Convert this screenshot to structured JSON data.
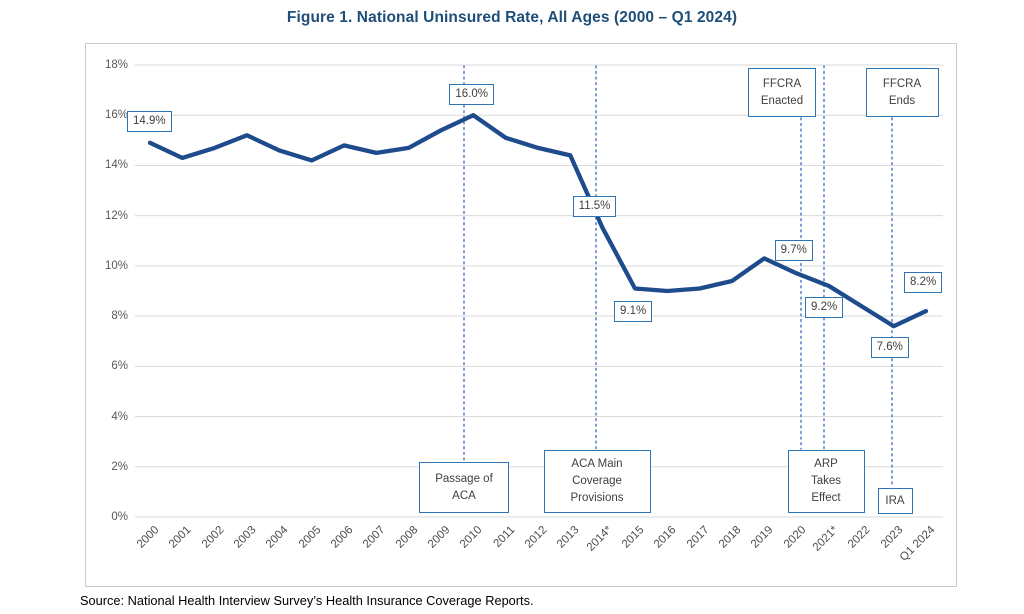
{
  "figure_title": "Figure 1. National Uninsured Rate, All Ages (2000 – Q1 2024)",
  "source_note": "Source: National Health Interview Survey’s Health Insurance Coverage Reports.",
  "chart_data": {
    "type": "line",
    "title": "National Uninsured Rate, All Ages (2000 – Q1 2024)",
    "categories": [
      "2000",
      "2001",
      "2002",
      "2003",
      "2004",
      "2005",
      "2006",
      "2007",
      "2008",
      "2009",
      "2010",
      "2011",
      "2012",
      "2013",
      "2014*",
      "2015",
      "2016",
      "2017",
      "2018",
      "2019",
      "2020",
      "2021*",
      "2022",
      "2023",
      "Q1 2024"
    ],
    "series": [
      {
        "name": "National uninsured rate (%)",
        "values": [
          14.9,
          14.3,
          14.7,
          15.2,
          14.6,
          14.2,
          14.8,
          14.5,
          14.7,
          15.4,
          16.0,
          15.1,
          14.7,
          14.4,
          11.5,
          9.1,
          9.0,
          9.1,
          9.4,
          10.3,
          9.7,
          9.2,
          8.4,
          7.6,
          8.2
        ]
      }
    ],
    "ylim": [
      0,
      18
    ],
    "ytick_labels": [
      "0%",
      "2%",
      "4%",
      "6%",
      "8%",
      "10%",
      "12%",
      "14%",
      "16%",
      "18%"
    ],
    "grid": true,
    "legend": "none",
    "xlabel": "",
    "ylabel": "",
    "point_labels": [
      {
        "category": "2000",
        "text": "14.9%"
      },
      {
        "category": "2010",
        "text": "16.0%"
      },
      {
        "category": "2014*",
        "text": "11.5%"
      },
      {
        "category": "2015",
        "text": "9.1%"
      },
      {
        "category": "2020",
        "text": "9.7%"
      },
      {
        "category": "2021*",
        "text": "9.2%"
      },
      {
        "category": "2023",
        "text": "7.6%"
      },
      {
        "category": "Q1 2024",
        "text": "8.2%"
      }
    ],
    "annotations": [
      {
        "id": "passage-aca",
        "lines": [
          "Passage of",
          "ACA"
        ],
        "category": "2010",
        "position": "bottom"
      },
      {
        "id": "aca-main-coverage",
        "lines": [
          "ACA Main",
          "Coverage",
          "Provisions"
        ],
        "category": "2014*",
        "position": "bottom"
      },
      {
        "id": "ffcra-enacted",
        "lines": [
          "FFCRA",
          "Enacted"
        ],
        "category": "2020",
        "position": "top"
      },
      {
        "id": "arp-takes-effect",
        "lines": [
          "ARP",
          "Takes",
          "Effect"
        ],
        "category": "2021*",
        "position": "bottom"
      },
      {
        "id": "ffcra-ends",
        "lines": [
          "FFCRA",
          "Ends"
        ],
        "category": "2023",
        "position": "top"
      },
      {
        "id": "ira",
        "lines": [
          "IRA"
        ],
        "category": "2023",
        "position": "bottom"
      }
    ],
    "colors": {
      "line": "#1E4B8C",
      "title": "#1F4E79",
      "box_border": "#2E75B6",
      "dotted_line": "#4472C4",
      "gridline": "#D9D9D9",
      "axis_text": "#595959",
      "label_text": "#404040"
    }
  }
}
